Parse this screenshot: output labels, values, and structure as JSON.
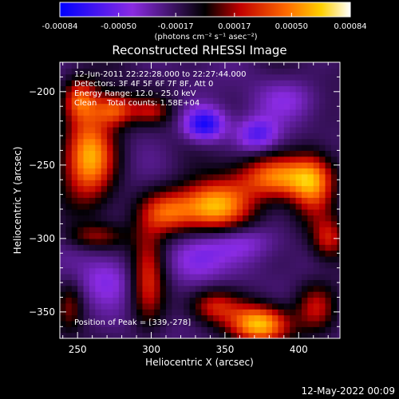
{
  "chart_data": {
    "type": "heatmap",
    "title": "Reconstructed RHESSI Image",
    "xlabel": "Heliocentric X (arcsec)",
    "ylabel": "Heliocentric Y (arcsec)",
    "xlim": [
      238,
      428
    ],
    "ylim": [
      -368,
      -180
    ],
    "x_ticks": [
      250,
      300,
      350,
      400
    ],
    "y_ticks": [
      -200,
      -250,
      -300,
      -350
    ],
    "colorbar": {
      "ticks": [
        "-0.00084",
        "-0.00050",
        "-0.00017",
        "0.00017",
        "0.00050",
        "0.00084"
      ],
      "range": [
        -0.00084,
        0.00084
      ],
      "units_label": "(photons cm⁻² s⁻¹ asec⁻²)"
    },
    "info_lines": [
      "12-Jun-2011 22:22:28.000 to 22:27:44.000",
      "Detectors: 3F 4F 5F 6F 7F 8F, Att 0",
      "Energy Range: 12.0 - 25.0 keV",
      "Clean    Total counts: 1.58E+04"
    ],
    "peak_label": "Position of Peak = [339,-278]",
    "sources": [
      {
        "x": 258,
        "y": -243,
        "sx": 12,
        "sy": 20,
        "value": 0.0008
      },
      {
        "x": 275,
        "y": -212,
        "sx": 10,
        "sy": 8,
        "value": 0.00055
      },
      {
        "x": 252,
        "y": -205,
        "sx": 8,
        "sy": 10,
        "value": 0.0005
      },
      {
        "x": 300,
        "y": -213,
        "sx": 9,
        "sy": 6,
        "value": 0.0003
      },
      {
        "x": 341,
        "y": -278,
        "sx": 18,
        "sy": 12,
        "value": 0.00084
      },
      {
        "x": 388,
        "y": -258,
        "sx": 20,
        "sy": 10,
        "value": 0.00065
      },
      {
        "x": 410,
        "y": -262,
        "sx": 10,
        "sy": 16,
        "value": 0.0005
      },
      {
        "x": 310,
        "y": -282,
        "sx": 12,
        "sy": 10,
        "value": 0.00045
      },
      {
        "x": 298,
        "y": -325,
        "sx": 8,
        "sy": 22,
        "value": 0.0005
      },
      {
        "x": 262,
        "y": -298,
        "sx": 14,
        "sy": 6,
        "value": 0.0003
      },
      {
        "x": 374,
        "y": -358,
        "sx": 14,
        "sy": 9,
        "value": 0.0008
      },
      {
        "x": 342,
        "y": -346,
        "sx": 12,
        "sy": 8,
        "value": 0.0004
      },
      {
        "x": 412,
        "y": -346,
        "sx": 10,
        "sy": 12,
        "value": 0.0004
      },
      {
        "x": 420,
        "y": -300,
        "sx": 8,
        "sy": 10,
        "value": 0.0004
      },
      {
        "x": 245,
        "y": -345,
        "sx": 6,
        "sy": 12,
        "value": 0.00025
      },
      {
        "x": 336,
        "y": -222,
        "sx": 10,
        "sy": 8,
        "value": -0.0006
      },
      {
        "x": 372,
        "y": -229,
        "sx": 10,
        "sy": 8,
        "value": -0.0004
      },
      {
        "x": 330,
        "y": -315,
        "sx": 14,
        "sy": 12,
        "value": -0.00035
      },
      {
        "x": 360,
        "y": -302,
        "sx": 18,
        "sy": 8,
        "value": -0.0002
      },
      {
        "x": 270,
        "y": -327,
        "sx": 12,
        "sy": 12,
        "value": -0.00025
      },
      {
        "x": 395,
        "y": -205,
        "sx": 16,
        "sy": 10,
        "value": -0.0002
      }
    ]
  },
  "footer": {
    "timestamp": "12-May-2022 00:09"
  }
}
